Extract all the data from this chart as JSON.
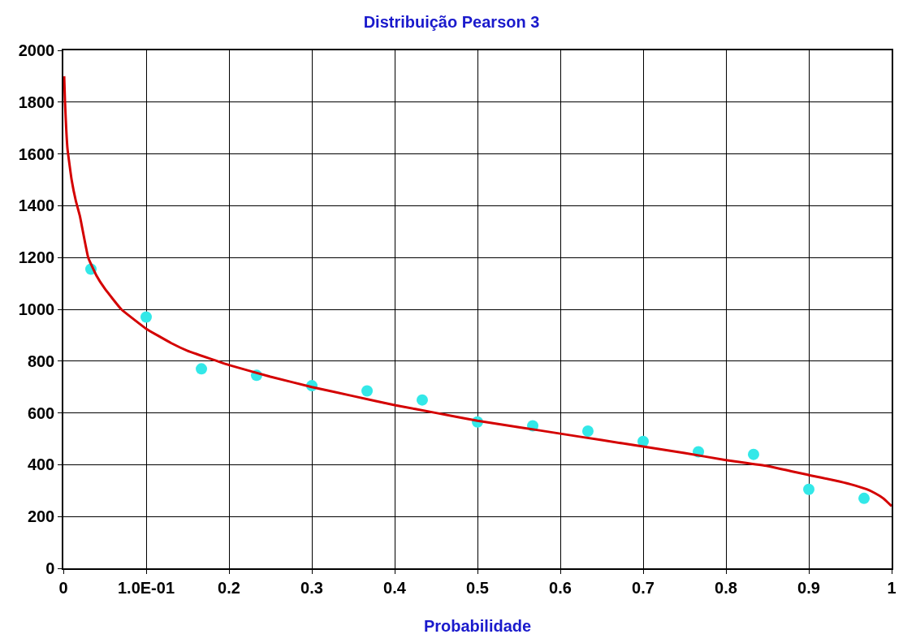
{
  "chart_data": {
    "type": "scatter",
    "title": "Distribuição Pearson 3",
    "xlabel": "Probabilidade",
    "xlim": [
      0,
      1
    ],
    "xticks": [
      0,
      {
        "value": 0.1,
        "label": "1.0E-01"
      },
      0.2,
      0.3,
      0.4,
      0.5,
      0.6,
      0.7,
      0.8,
      0.9,
      1
    ],
    "ylim": [
      0,
      2000
    ],
    "yticks": [
      0,
      200,
      400,
      600,
      800,
      1000,
      1200,
      1400,
      1600,
      1800,
      2000
    ],
    "grid": true,
    "series": [
      {
        "marker": "circle",
        "color": "#33e8e8",
        "x": [
          0.0333,
          0.1,
          0.1667,
          0.2333,
          0.3,
          0.3667,
          0.4333,
          0.5,
          0.5667,
          0.6333,
          0.7,
          0.7667,
          0.8333,
          0.9,
          0.9667
        ],
        "values": [
          1155,
          970,
          770,
          745,
          705,
          685,
          650,
          565,
          550,
          530,
          490,
          450,
          440,
          305,
          270
        ]
      },
      {
        "type": "line",
        "marker": "none",
        "color": "#d40000",
        "x": [
          0.001,
          0.002,
          0.005,
          0.01,
          0.015,
          0.02,
          0.03,
          0.04,
          0.05,
          0.07,
          0.1,
          0.13,
          0.15,
          0.2,
          0.25,
          0.3,
          0.35,
          0.4,
          0.45,
          0.5,
          0.55,
          0.6,
          0.65,
          0.7,
          0.75,
          0.8,
          0.85,
          0.9,
          0.93,
          0.95,
          0.97,
          0.98,
          0.99,
          1.0
        ],
        "values": [
          1900,
          1800,
          1620,
          1500,
          1420,
          1360,
          1200,
          1130,
          1080,
          1000,
          925,
          870,
          840,
          785,
          740,
          700,
          665,
          630,
          600,
          570,
          545,
          520,
          495,
          470,
          445,
          418,
          395,
          360,
          340,
          325,
          305,
          290,
          270,
          240
        ]
      }
    ]
  }
}
